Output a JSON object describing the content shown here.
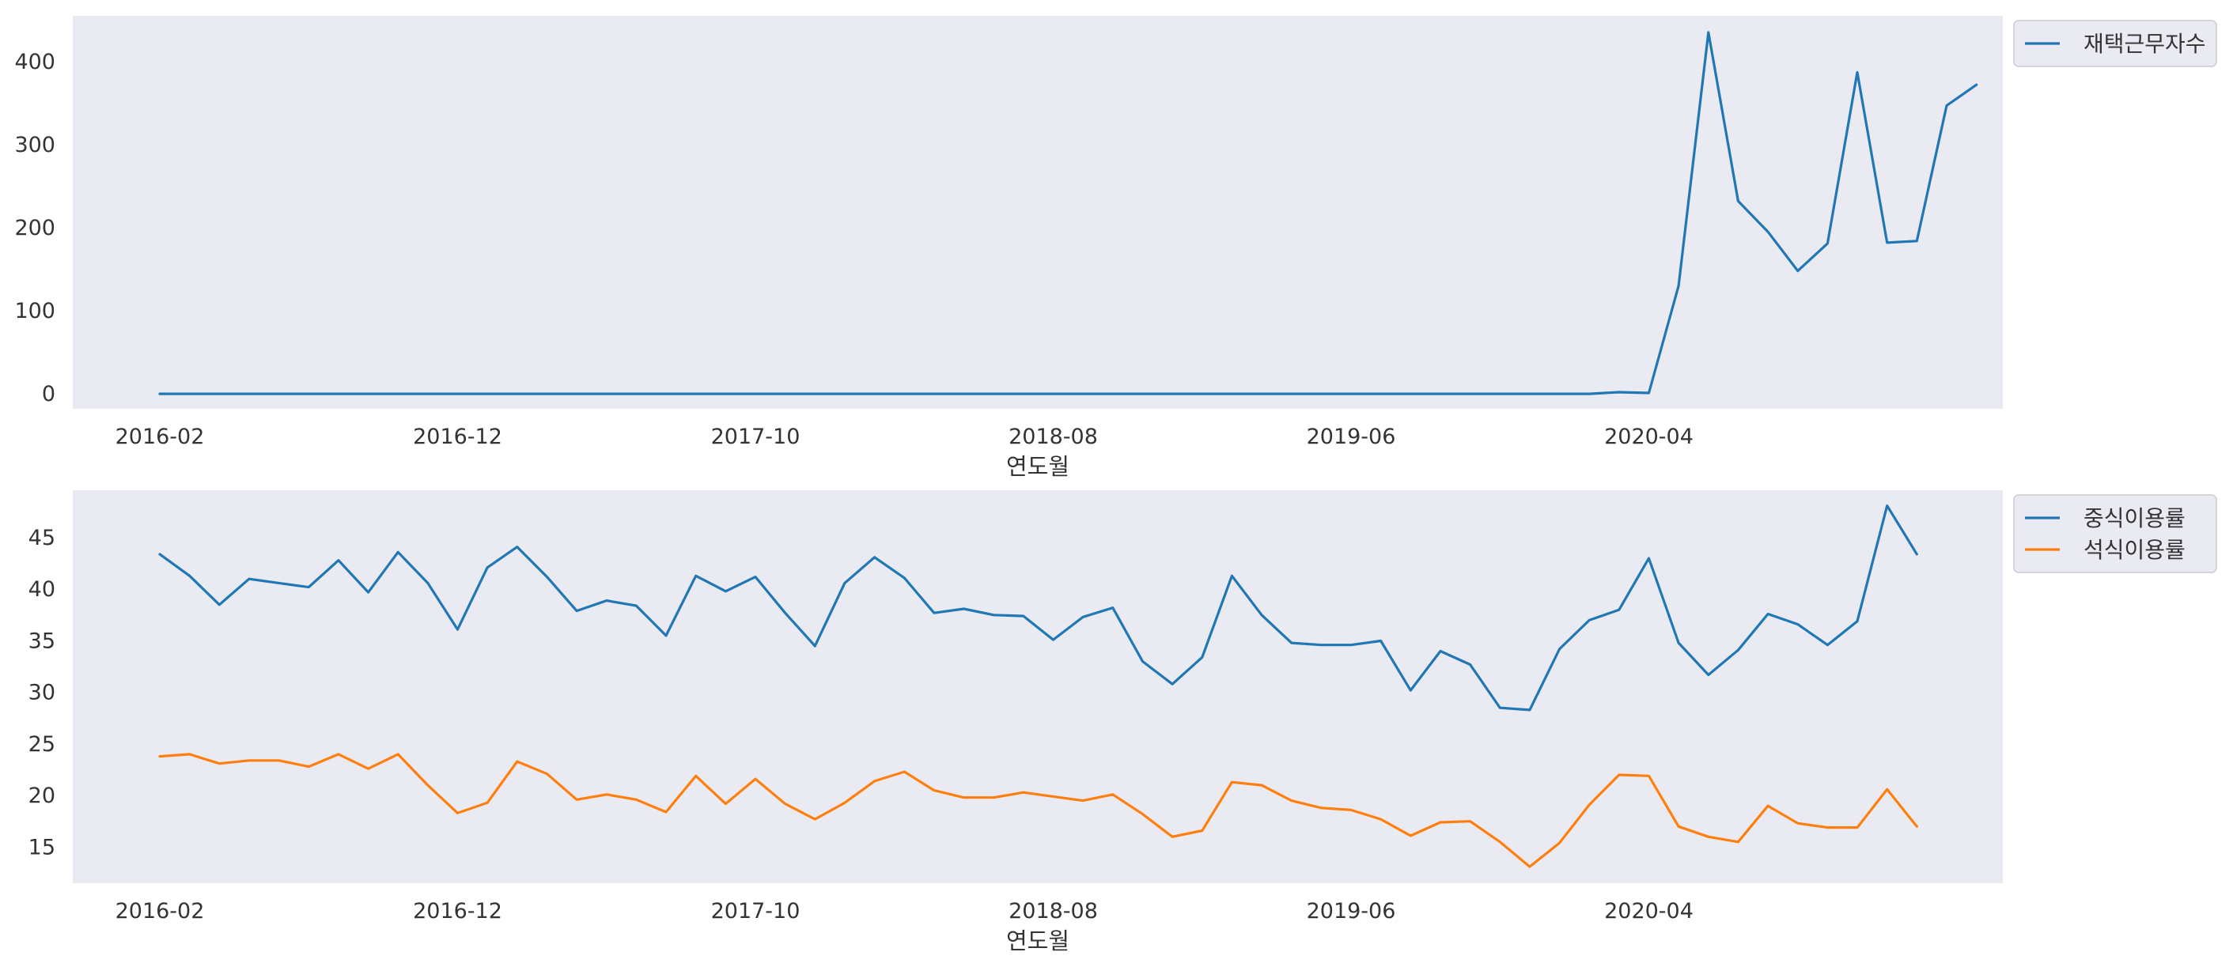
{
  "chart_data": [
    {
      "type": "line",
      "xlabel": "연도월",
      "x_tick_labels": [
        "2016-02",
        "2016-12",
        "2017-10",
        "2018-08",
        "2019-06",
        "2020-04"
      ],
      "yticks": [
        0,
        100,
        200,
        300,
        400
      ],
      "ylim": [
        -18,
        455
      ],
      "grid": false,
      "legend": "outside-top-right",
      "series": [
        {
          "name": "재택근무자수",
          "color": "#1f77b4",
          "values": [
            0,
            0,
            0,
            0,
            0,
            0,
            0,
            0,
            0,
            0,
            0,
            0,
            0,
            0,
            0,
            0,
            0,
            0,
            0,
            0,
            0,
            0,
            0,
            0,
            0,
            0,
            0,
            0,
            0,
            0,
            0,
            0,
            0,
            0,
            0,
            0,
            0,
            0,
            0,
            0,
            0,
            0,
            0,
            0,
            0,
            0,
            0,
            0,
            0,
            2,
            1,
            130,
            435,
            232,
            195,
            148,
            181,
            387,
            182,
            184,
            347,
            372
          ]
        }
      ]
    },
    {
      "type": "line",
      "xlabel": "연도월",
      "x_tick_labels": [
        "2016-02",
        "2016-12",
        "2017-10",
        "2018-08",
        "2019-06",
        "2020-04"
      ],
      "yticks": [
        15,
        20,
        25,
        30,
        35,
        40,
        45
      ],
      "ylim": [
        11.5,
        49.6
      ],
      "grid": false,
      "legend": "outside-top-right",
      "series": [
        {
          "name": "중식이용률",
          "color": "#1f77b4",
          "values": [
            43.4,
            41.3,
            38.5,
            41.0,
            40.6,
            40.2,
            42.8,
            39.7,
            43.6,
            40.6,
            36.1,
            42.1,
            44.1,
            41.2,
            37.9,
            38.9,
            38.4,
            35.5,
            41.3,
            39.8,
            41.2,
            37.7,
            34.5,
            40.6,
            43.1,
            41.1,
            37.7,
            38.1,
            37.5,
            37.4,
            35.1,
            37.3,
            38.2,
            33.0,
            30.8,
            33.4,
            41.3,
            37.5,
            34.8,
            34.6,
            34.6,
            35.0,
            30.2,
            34.0,
            32.7,
            28.5,
            28.3,
            34.2,
            37.0,
            38.0,
            43.0,
            34.8,
            31.7,
            34.1,
            37.6,
            36.6,
            34.6,
            36.9,
            48.1,
            43.4
          ]
        },
        {
          "name": "석식이용률",
          "color": "#ff7f0e",
          "values": [
            23.8,
            24.0,
            23.1,
            23.4,
            23.4,
            22.8,
            24.0,
            22.6,
            24.0,
            21.0,
            18.3,
            19.3,
            23.3,
            22.1,
            19.6,
            20.1,
            19.6,
            18.4,
            21.9,
            19.2,
            21.6,
            19.2,
            17.7,
            19.3,
            21.4,
            22.3,
            20.5,
            19.8,
            19.8,
            20.3,
            19.9,
            19.5,
            20.1,
            18.2,
            16.0,
            16.6,
            21.3,
            21.0,
            19.5,
            18.8,
            18.6,
            17.7,
            16.1,
            17.4,
            17.5,
            15.5,
            13.1,
            15.4,
            19.1,
            22.0,
            21.9,
            17.0,
            16.0,
            15.5,
            19.0,
            17.3,
            16.9,
            16.9,
            20.6,
            17.0
          ]
        }
      ]
    }
  ]
}
